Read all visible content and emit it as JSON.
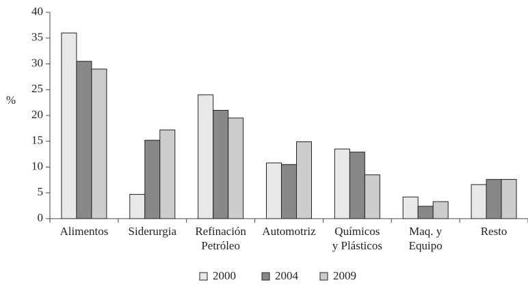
{
  "chart_data": {
    "type": "bar",
    "y_label": "%",
    "categories": [
      [
        "Alimentos"
      ],
      [
        "Siderurgia"
      ],
      [
        "Refinación",
        "Petróleo"
      ],
      [
        "Automotriz"
      ],
      [
        "Químicos",
        "y Plásticos"
      ],
      [
        "Maq. y",
        "Equipo"
      ],
      [
        "Resto"
      ]
    ],
    "series": [
      {
        "name": "2000",
        "color": "#e8e8e8",
        "values": [
          36,
          4.7,
          24,
          10.8,
          13.5,
          4.2,
          6.6
        ]
      },
      {
        "name": "2004",
        "color": "#888888",
        "values": [
          30.5,
          15.2,
          21,
          10.5,
          12.9,
          2.4,
          7.6
        ]
      },
      {
        "name": "2009",
        "color": "#cccccc",
        "values": [
          29,
          17.2,
          19.5,
          14.9,
          8.5,
          3.3,
          7.6
        ]
      }
    ],
    "ylim": [
      0,
      40
    ],
    "yticks": [
      0,
      5,
      10,
      15,
      20,
      25,
      30,
      35,
      40
    ]
  }
}
